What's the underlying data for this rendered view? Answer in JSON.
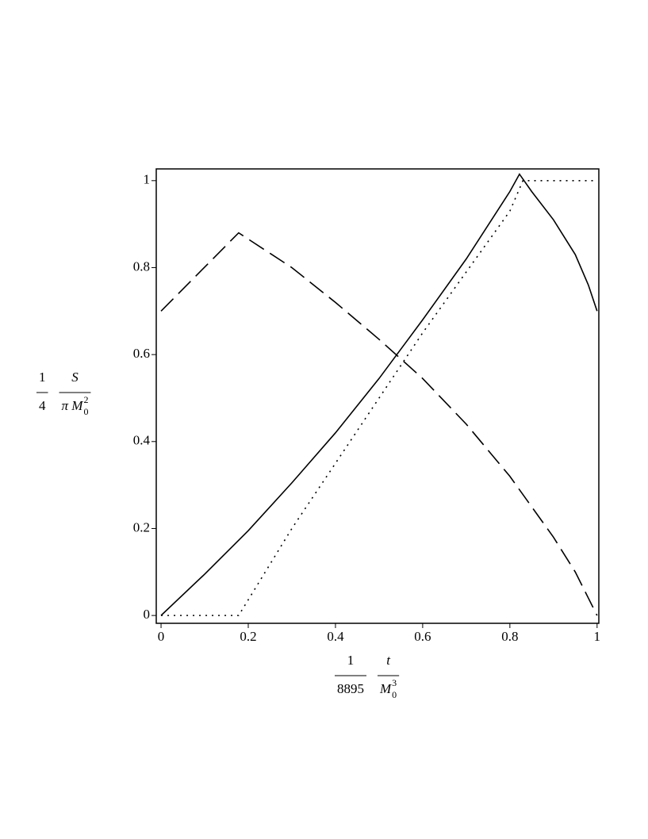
{
  "chart_data": {
    "type": "line",
    "xlim": [
      -0.011,
      1.004
    ],
    "ylim": [
      -0.018,
      1.027
    ],
    "xticks": [
      0,
      0.2,
      0.4,
      0.6,
      0.8,
      1
    ],
    "yticks": [
      0,
      0.2,
      0.4,
      0.6,
      0.8,
      1
    ],
    "xlabel": {
      "factor": {
        "numerator": "1",
        "denominator": "8895"
      },
      "fraction": {
        "numerator": "t",
        "denominator": {
          "base": "M",
          "subscript": "0",
          "superscript": "3"
        }
      }
    },
    "ylabel": {
      "factor": {
        "numerator": "1",
        "denominator": "4"
      },
      "fraction": {
        "numerator": "S",
        "denominator": {
          "base": "π M",
          "subscript": "0",
          "superscript": "2"
        }
      }
    },
    "series": [
      {
        "color": "#000000",
        "dash": "solid",
        "x": [
          0,
          0.1,
          0.2,
          0.3,
          0.4,
          0.5,
          0.6,
          0.7,
          0.8,
          0.822,
          0.85,
          0.9,
          0.95,
          0.98,
          1
        ],
        "values": [
          0,
          0.095,
          0.195,
          0.305,
          0.42,
          0.545,
          0.68,
          0.82,
          0.975,
          1.015,
          0.975,
          0.91,
          0.83,
          0.76,
          0.7
        ]
      },
      {
        "color": "#000000",
        "dash": "dashed",
        "x": [
          0,
          0.178,
          0.3,
          0.4,
          0.5,
          0.6,
          0.7,
          0.8,
          0.9,
          0.95,
          0.98,
          1
        ],
        "values": [
          0.7,
          0.88,
          0.8,
          0.72,
          0.635,
          0.545,
          0.44,
          0.32,
          0.18,
          0.1,
          0.04,
          0
        ]
      },
      {
        "color": "#000000",
        "dash": "dotted",
        "x": [
          0,
          0.178,
          0.3,
          0.4,
          0.5,
          0.6,
          0.7,
          0.8,
          0.83,
          1
        ],
        "values": [
          0,
          0,
          0.2,
          0.35,
          0.5,
          0.65,
          0.79,
          0.93,
          1,
          1
        ]
      }
    ]
  }
}
